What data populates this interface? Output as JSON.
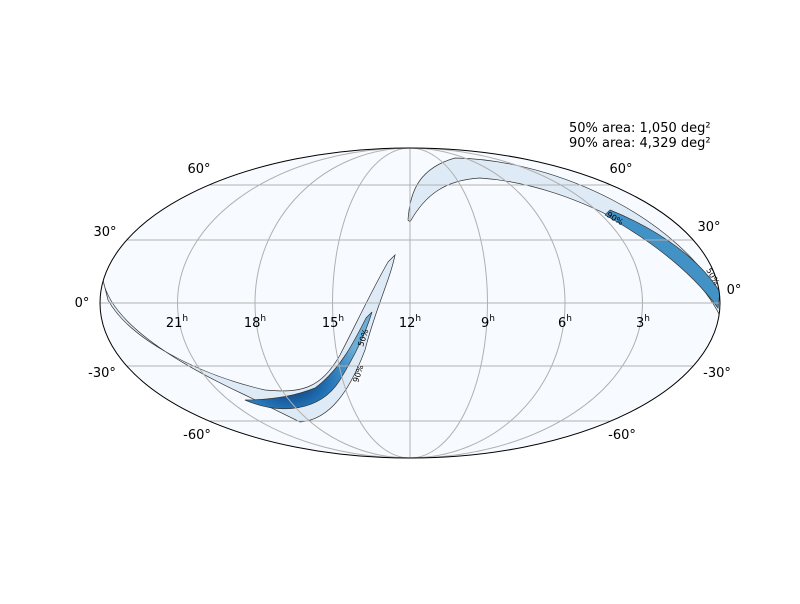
{
  "annotation": [
    "50% area: 1,050 deg²",
    "90% area: 4,329 deg²"
  ],
  "ra_labels": [
    {
      "hour": "21",
      "unit": "h"
    },
    {
      "hour": "18",
      "unit": "h"
    },
    {
      "hour": "15",
      "unit": "h"
    },
    {
      "hour": "12",
      "unit": "h"
    },
    {
      "hour": "9",
      "unit": "h"
    },
    {
      "hour": "6",
      "unit": "h"
    },
    {
      "hour": "3",
      "unit": "h"
    }
  ],
  "dec_labels_left": [
    "60°",
    "30°",
    "0°",
    "-30°",
    "-60°"
  ],
  "dec_labels_right": [
    "60°",
    "30°",
    "0°",
    "-30°",
    "-60°"
  ],
  "contour_labels": [
    "90%",
    "50%",
    "50%",
    "90%"
  ]
}
